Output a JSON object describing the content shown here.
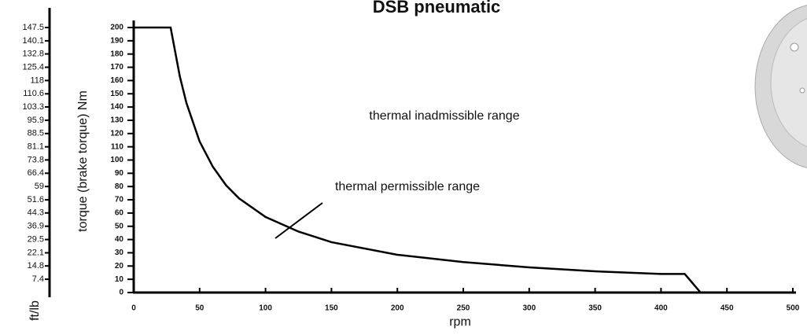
{
  "chart_data": {
    "type": "line",
    "title": "DSB pneumatic",
    "xlabel": "rpm",
    "ylabel": "torque (brake torque) Nm",
    "y2label": "ft/lb",
    "annotations": [
      "thermal inadmissible range",
      "thermal permissible range"
    ],
    "x": [
      0,
      28,
      35,
      40,
      50,
      60,
      70,
      80,
      100,
      125,
      150,
      200,
      250,
      300,
      350,
      400,
      418,
      430
    ],
    "series": [
      {
        "name": "torque",
        "color": "#000000",
        "values": [
          200,
          200,
          163,
          143,
          114,
          95,
          81,
          71,
          57,
          46,
          38,
          28.5,
          23,
          19,
          16,
          14,
          14,
          0
        ]
      }
    ],
    "xlim": [
      0,
      500
    ],
    "xticks": [
      0,
      50,
      100,
      150,
      200,
      250,
      300,
      350,
      400,
      450,
      500
    ],
    "ylim": [
      0,
      200
    ],
    "yticks": [
      0,
      10,
      20,
      30,
      40,
      50,
      60,
      70,
      80,
      90,
      100,
      110,
      120,
      130,
      140,
      150,
      160,
      170,
      180,
      190,
      200
    ],
    "y2lim": [
      0,
      147.5
    ],
    "y2ticks": [
      7.4,
      14.8,
      22.1,
      29.5,
      36.9,
      44.3,
      51.6,
      59.0,
      66.4,
      73.8,
      81.1,
      88.5,
      95.9,
      103.3,
      110.6,
      118.0,
      125.4,
      132.8,
      140.1,
      147.5
    ],
    "grid": false
  }
}
